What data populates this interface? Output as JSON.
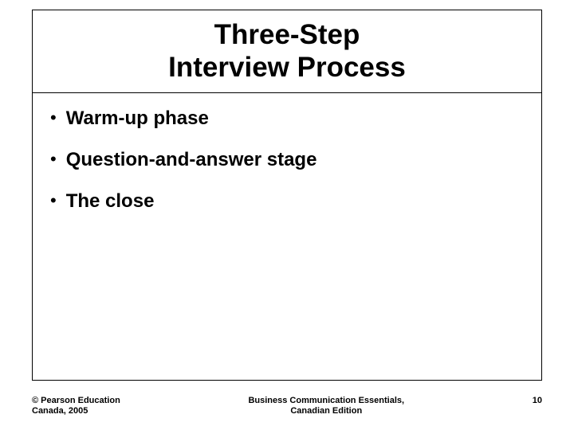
{
  "title": {
    "line1": "Three-Step",
    "line2": "Interview Process"
  },
  "bullets": [
    "Warm-up phase",
    "Question-and-answer stage",
    "The close"
  ],
  "footer": {
    "copyright_line1": "© Pearson Education",
    "copyright_line2": "Canada, 2005",
    "center_line1": "Business Communication Essentials,",
    "center_line2": "Canadian Edition",
    "page_number": "10"
  },
  "style": {
    "background_color": "#ffffff",
    "border_color": "#000000",
    "text_color": "#000000",
    "title_fontsize": 35,
    "bullet_fontsize": 24,
    "footer_fontsize": 11
  }
}
